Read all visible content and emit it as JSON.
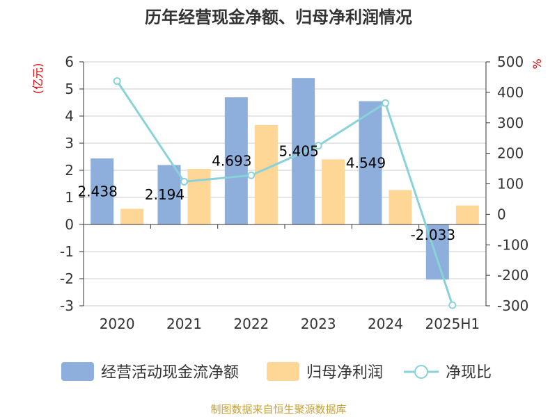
{
  "chart_data": {
    "type": "bar",
    "title": "历年经营现金净额、归母净利润情况",
    "categories": [
      "2020",
      "2021",
      "2022",
      "2023",
      "2024",
      "2025H1"
    ],
    "series": [
      {
        "name": "经营活动现金流净额",
        "type": "bar",
        "axis": "left",
        "color": "#8eaedb",
        "values": [
          2.438,
          2.194,
          4.693,
          5.405,
          4.549,
          -2.033
        ],
        "labels": [
          "2.438",
          "2.194",
          "4.693",
          "5.405",
          "4.549",
          "-2.033"
        ]
      },
      {
        "name": "归母净利润",
        "type": "bar",
        "axis": "left",
        "color": "#fed696",
        "values": [
          0.58,
          2.05,
          3.67,
          2.4,
          1.27,
          0.7
        ]
      },
      {
        "name": "净现比",
        "type": "line",
        "axis": "right",
        "color": "#88d2d8",
        "values": [
          437,
          107,
          128,
          225,
          365,
          -298
        ]
      }
    ],
    "ylabel": "(亿元)",
    "y2label": "%",
    "ylim": [
      -3,
      6
    ],
    "yticks": [
      "-3",
      "-2",
      "-1",
      "0",
      "1",
      "2",
      "3",
      "4",
      "5",
      "6"
    ],
    "y2lim": [
      -300,
      500
    ],
    "y2ticks": [
      "-300",
      "-200",
      "-100",
      "0",
      "100",
      "200",
      "300",
      "400",
      "500"
    ],
    "grid": true,
    "legend_position": "bottom",
    "source": "制图数据来自恒生聚源数据库"
  }
}
